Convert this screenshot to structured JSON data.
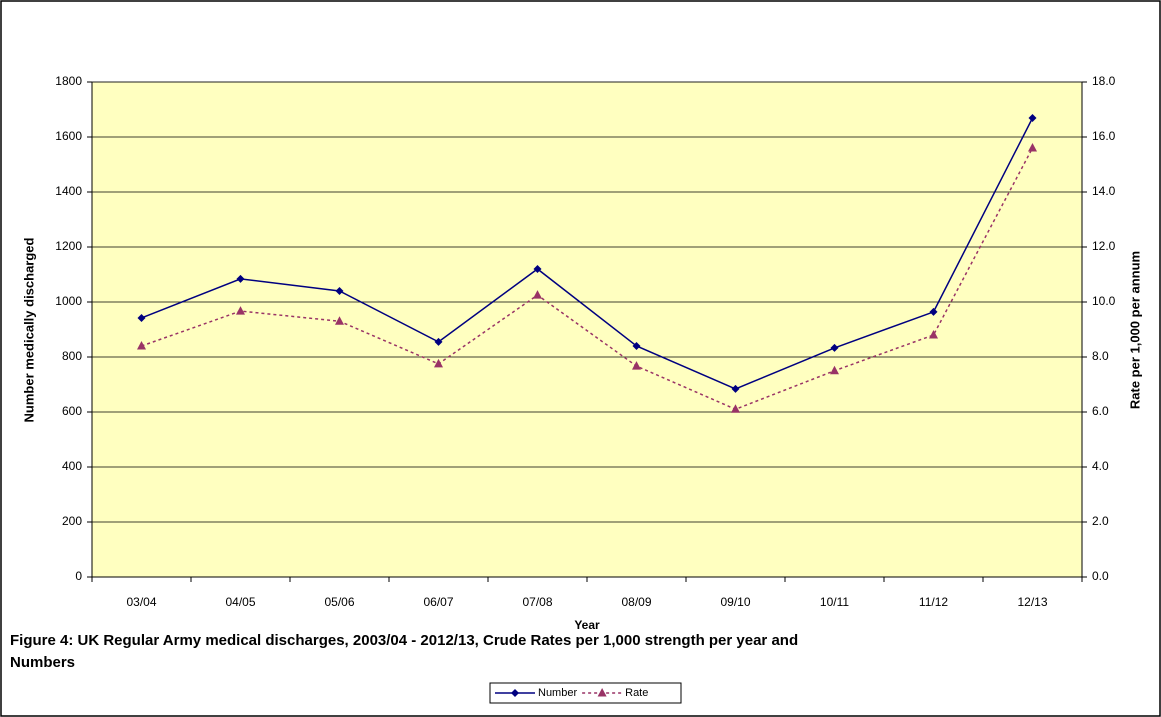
{
  "chart_data": {
    "type": "line",
    "title": "Figure 4: UK Regular Army medical discharges, 2003/04 - 2012/13, Crude Rates per 1,000 strength per year and Numbers",
    "x_label": "Year",
    "y_label": "Number medically discharged",
    "y2_label": "Rate per 1,000 per annum",
    "categories": [
      "03/04",
      "04/05",
      "05/06",
      "06/07",
      "07/08",
      "08/09",
      "09/10",
      "10/11",
      "11/12",
      "12/13"
    ],
    "series": [
      {
        "name": "Number",
        "color": "#000080",
        "marker": "diamond",
        "dashed": false,
        "values": [
          942,
          1084,
          1040,
          855,
          1120,
          840,
          684,
          833,
          964,
          1669
        ]
      },
      {
        "name": "Rate",
        "color": "#993366",
        "marker": "triangle",
        "dashed": true,
        "axis": "y2",
        "values": [
          8.4,
          9.67,
          9.3,
          7.75,
          10.25,
          7.67,
          6.1,
          7.5,
          8.8,
          15.6
        ]
      }
    ],
    "ylim": [
      0,
      1800
    ],
    "yticks": [
      0,
      200,
      400,
      600,
      800,
      1000,
      1200,
      1400,
      1600,
      1800
    ],
    "y2lim": [
      0,
      18
    ],
    "y2ticks": [
      {
        "value": 0,
        "label": "0.0"
      },
      {
        "value": 2,
        "label": "2.0"
      },
      {
        "value": 4,
        "label": "4.0"
      },
      {
        "value": 6,
        "label": "6.0"
      },
      {
        "value": 8,
        "label": "8.0"
      },
      {
        "value": 10,
        "label": "10.0"
      },
      {
        "value": 12,
        "label": "12.0"
      },
      {
        "value": 14,
        "label": "14.0"
      },
      {
        "value": 16,
        "label": "16.0"
      },
      {
        "value": 18,
        "label": "18.0"
      }
    ],
    "grid": true,
    "legend": "bottom",
    "plot_background": "#FFFFC0"
  }
}
